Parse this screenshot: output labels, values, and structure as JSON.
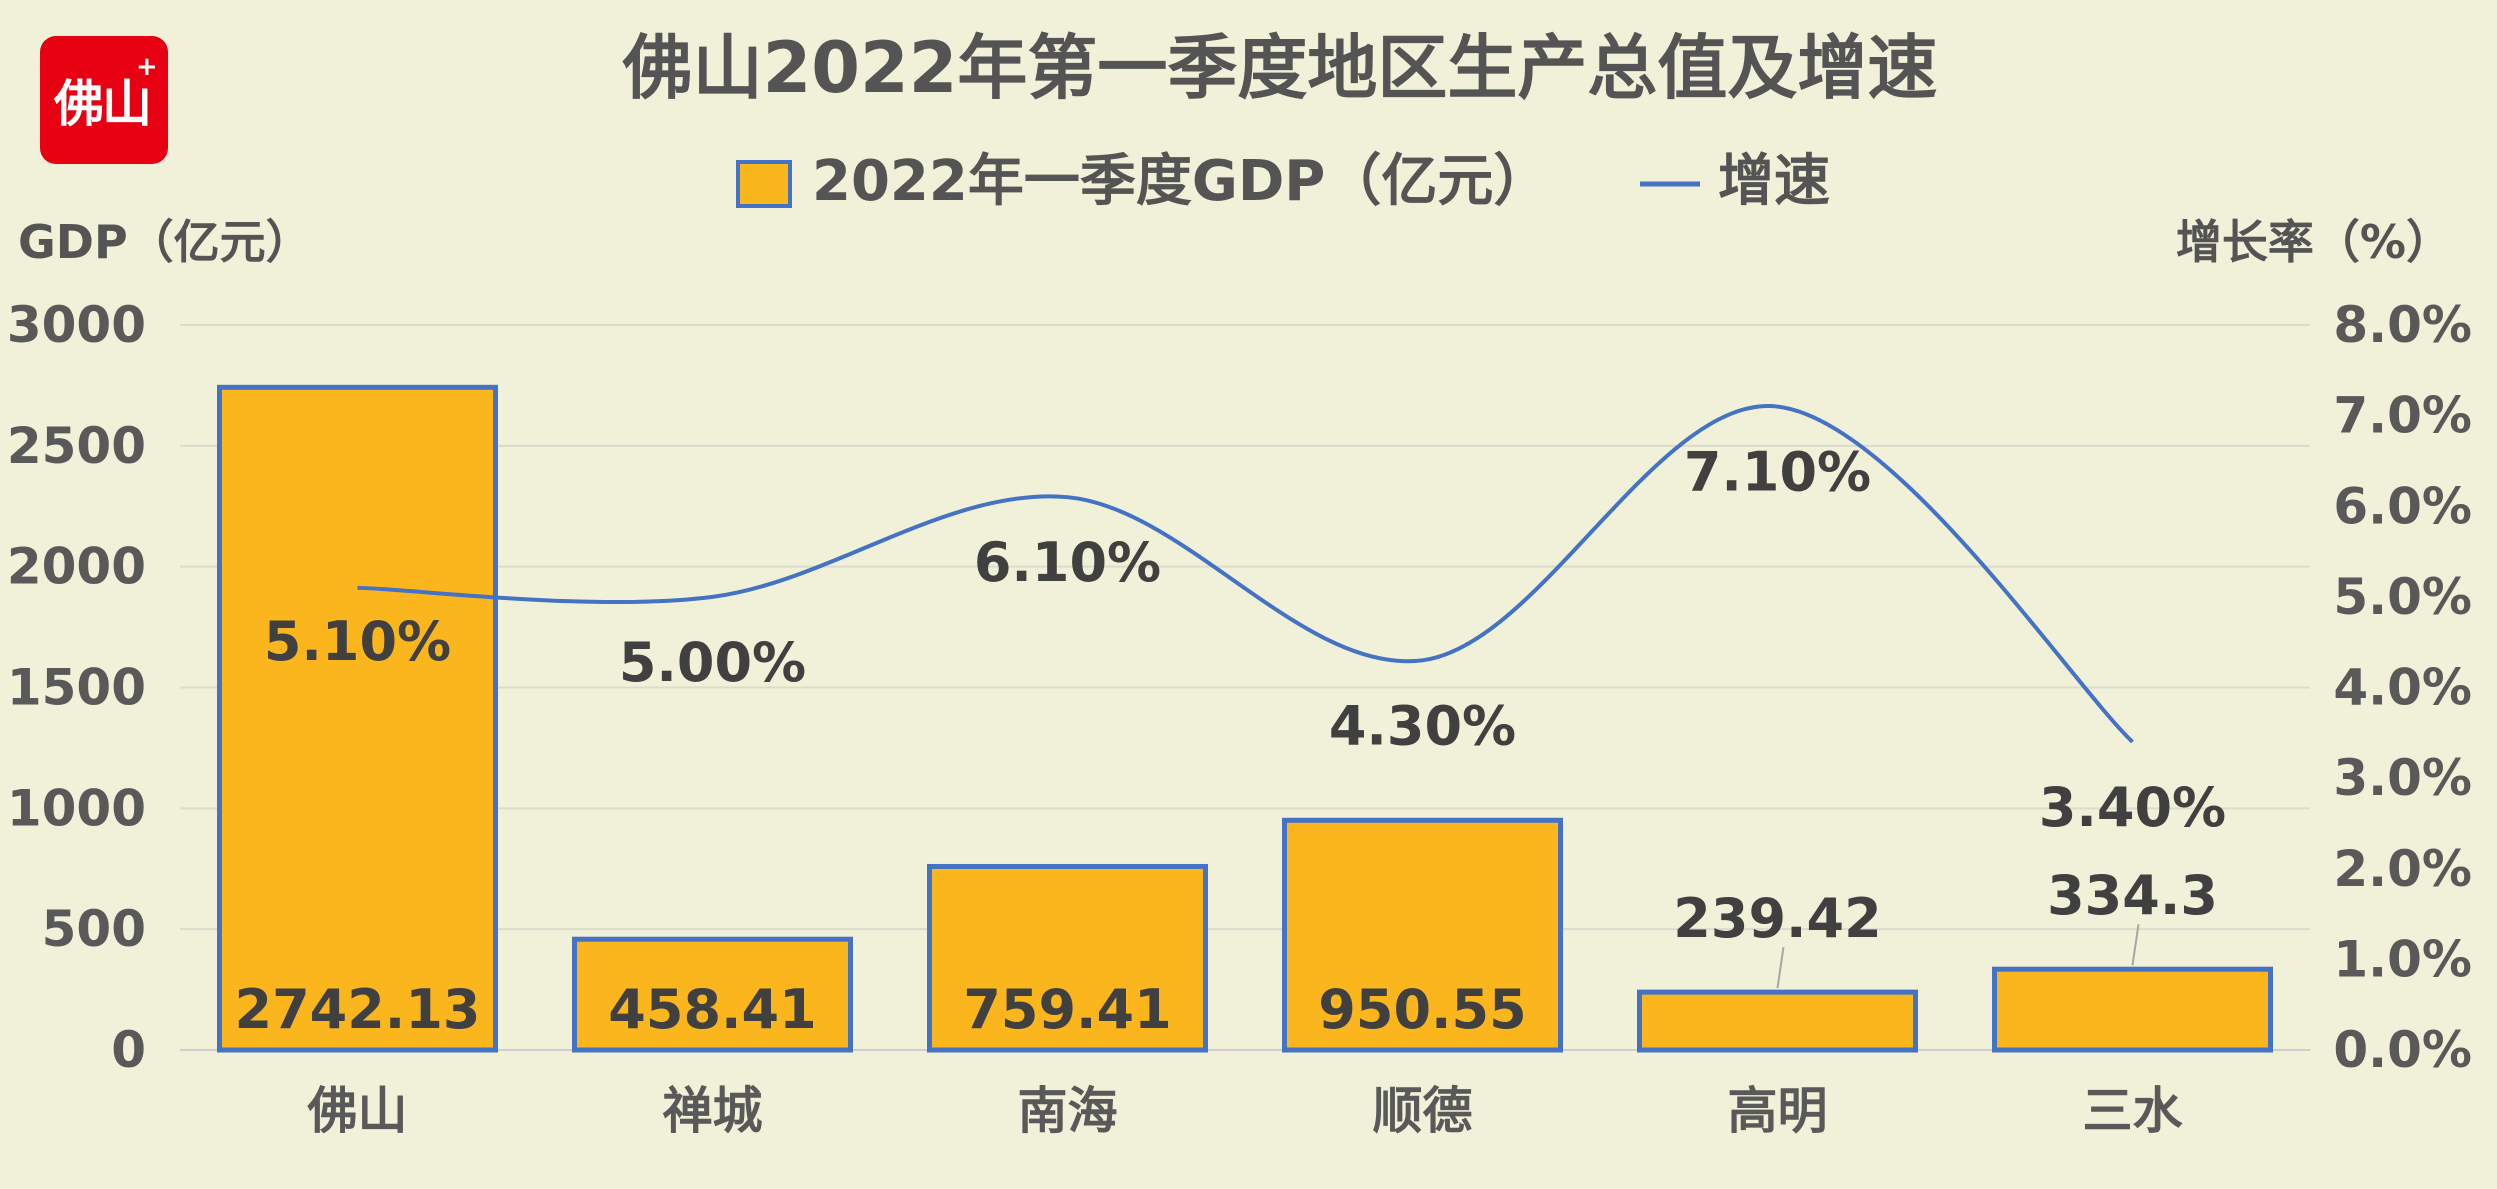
{
  "logo": {
    "text": "佛山",
    "mark": "+",
    "color": "#e60012"
  },
  "chart_data": {
    "type": "bar+line",
    "title": "佛山2022年第一季度地区生产总值及增速",
    "categories": [
      "佛山",
      "禅城",
      "南海",
      "顺德",
      "高明",
      "三水"
    ],
    "series": [
      {
        "name": "2022年一季度GDP（亿元）",
        "type": "bar",
        "axis": "left",
        "color": "#fbb61d",
        "edge": "#4472c4",
        "values": [
          2742.13,
          458.41,
          759.41,
          950.55,
          239.42,
          334.3
        ],
        "labels": [
          "2742.13",
          "458.41",
          "759.41",
          "950.55",
          "239.42",
          "334.3"
        ]
      },
      {
        "name": "增速",
        "type": "line",
        "axis": "right",
        "color": "#4472c4",
        "values": [
          5.1,
          5.0,
          6.1,
          4.3,
          7.1,
          3.4
        ],
        "labels": [
          "5.10%",
          "5.00%",
          "6.10%",
          "4.30%",
          "7.10%",
          "3.40%"
        ]
      }
    ],
    "ylabel": "GDP（亿元）",
    "y2label": "增长率（%）",
    "ylim": [
      0,
      3000
    ],
    "y2lim": [
      0,
      8
    ],
    "yticks": [
      "0",
      "500",
      "1000",
      "1500",
      "2000",
      "2500",
      "3000"
    ],
    "y2ticks": [
      "0.0%",
      "1.0%",
      "2.0%",
      "3.0%",
      "4.0%",
      "5.0%",
      "6.0%",
      "7.0%",
      "8.0%"
    ],
    "grid": true,
    "legend": "top-center"
  }
}
